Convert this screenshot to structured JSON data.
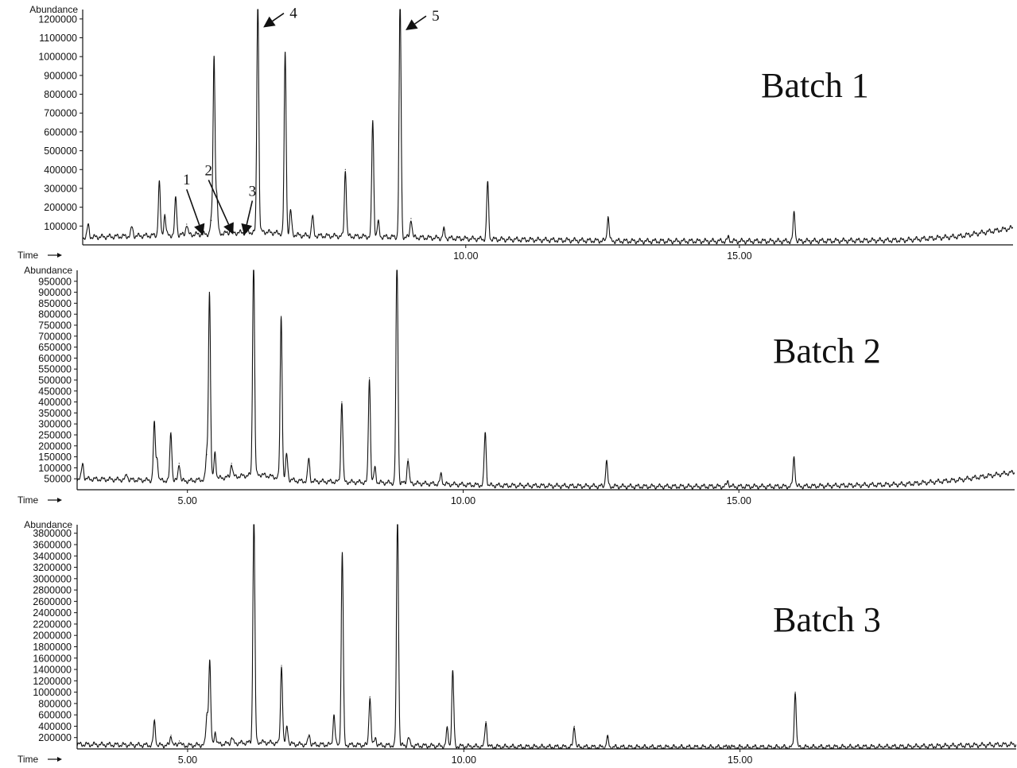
{
  "chart_data": [
    {
      "type": "line",
      "label": "Batch 1",
      "ylabel": "Abundance",
      "xlabel": "Time",
      "xlim": [
        3.0,
        20.0
      ],
      "ylim": [
        0,
        1250000
      ],
      "y_ticks": [
        100000,
        200000,
        300000,
        400000,
        500000,
        600000,
        700000,
        800000,
        900000,
        1000000,
        1100000,
        1200000
      ],
      "x_ticks": [
        10.0,
        15.0
      ],
      "x_tick_labels": [
        "10.00",
        "15.00"
      ],
      "baseline": [
        [
          3.0,
          40000
        ],
        [
          5.0,
          55000
        ],
        [
          6.3,
          70000
        ],
        [
          7.0,
          50000
        ],
        [
          9.0,
          40000
        ],
        [
          10.5,
          30000
        ],
        [
          13.0,
          20000
        ],
        [
          16.0,
          20000
        ],
        [
          18.0,
          25000
        ],
        [
          19.0,
          45000
        ],
        [
          20.0,
          90000
        ]
      ],
      "peaks": [
        {
          "x": 3.1,
          "y": 105000
        },
        {
          "x": 3.9,
          "y": 95000
        },
        {
          "x": 4.4,
          "y": 330000
        },
        {
          "x": 4.5,
          "y": 160000
        },
        {
          "x": 4.7,
          "y": 250000
        },
        {
          "x": 4.9,
          "y": 110000
        },
        {
          "x": 5.35,
          "y": 130000
        },
        {
          "x": 5.4,
          "y": 1000000
        },
        {
          "x": 5.45,
          "y": 250000
        },
        {
          "x": 5.7,
          "y": 80000
        },
        {
          "x": 6.2,
          "y": 1300000
        },
        {
          "x": 6.7,
          "y": 1020000
        },
        {
          "x": 6.8,
          "y": 180000
        },
        {
          "x": 7.2,
          "y": 150000
        },
        {
          "x": 7.8,
          "y": 400000
        },
        {
          "x": 8.3,
          "y": 660000
        },
        {
          "x": 8.4,
          "y": 120000
        },
        {
          "x": 8.8,
          "y": 1300000
        },
        {
          "x": 9.0,
          "y": 140000
        },
        {
          "x": 9.6,
          "y": 80000
        },
        {
          "x": 10.4,
          "y": 330000
        },
        {
          "x": 12.6,
          "y": 150000
        },
        {
          "x": 14.8,
          "y": 40000
        },
        {
          "x": 16.0,
          "y": 170000
        }
      ],
      "annotations": [
        {
          "text": "1",
          "x": 4.9,
          "y": 320000,
          "target_x": 5.2,
          "target_y": 50000
        },
        {
          "text": "2",
          "x": 5.3,
          "y": 370000,
          "target_x": 5.75,
          "target_y": 55000
        },
        {
          "text": "3",
          "x": 6.1,
          "y": 260000,
          "target_x": 5.95,
          "target_y": 50000
        },
        {
          "text": "4",
          "x": 6.85,
          "y": 1205000,
          "target_x": 6.3,
          "target_y": 1155000
        },
        {
          "text": "5",
          "x": 9.45,
          "y": 1190000,
          "target_x": 8.9,
          "target_y": 1140000
        }
      ]
    },
    {
      "type": "line",
      "label": "Batch 2",
      "ylabel": "Abundance",
      "xlabel": "Time",
      "xlim": [
        3.0,
        20.0
      ],
      "ylim": [
        0,
        1000000
      ],
      "y_ticks": [
        50000,
        100000,
        150000,
        200000,
        250000,
        300000,
        350000,
        400000,
        450000,
        500000,
        550000,
        600000,
        650000,
        700000,
        750000,
        800000,
        850000,
        900000,
        950000
      ],
      "x_ticks": [
        5.0,
        10.0,
        15.0
      ],
      "x_tick_labels": [
        "5.00",
        "10.00",
        "15.00"
      ],
      "baseline": [
        [
          3.0,
          50000
        ],
        [
          5.0,
          40000
        ],
        [
          6.3,
          70000
        ],
        [
          7.0,
          40000
        ],
        [
          9.0,
          30000
        ],
        [
          10.5,
          20000
        ],
        [
          13.0,
          15000
        ],
        [
          16.0,
          15000
        ],
        [
          18.0,
          25000
        ],
        [
          19.0,
          45000
        ],
        [
          20.0,
          80000
        ]
      ],
      "peaks": [
        {
          "x": 3.1,
          "y": 120000
        },
        {
          "x": 3.9,
          "y": 70000
        },
        {
          "x": 4.4,
          "y": 300000
        },
        {
          "x": 4.45,
          "y": 140000
        },
        {
          "x": 4.7,
          "y": 260000
        },
        {
          "x": 4.85,
          "y": 120000
        },
        {
          "x": 5.35,
          "y": 160000
        },
        {
          "x": 5.4,
          "y": 900000
        },
        {
          "x": 5.5,
          "y": 170000
        },
        {
          "x": 5.8,
          "y": 120000
        },
        {
          "x": 6.2,
          "y": 1050000
        },
        {
          "x": 6.7,
          "y": 790000
        },
        {
          "x": 6.8,
          "y": 160000
        },
        {
          "x": 7.2,
          "y": 140000
        },
        {
          "x": 7.8,
          "y": 400000
        },
        {
          "x": 8.3,
          "y": 510000
        },
        {
          "x": 8.4,
          "y": 100000
        },
        {
          "x": 8.8,
          "y": 1050000
        },
        {
          "x": 9.0,
          "y": 140000
        },
        {
          "x": 9.6,
          "y": 70000
        },
        {
          "x": 10.4,
          "y": 260000
        },
        {
          "x": 12.6,
          "y": 130000
        },
        {
          "x": 14.8,
          "y": 40000
        },
        {
          "x": 16.0,
          "y": 150000
        }
      ]
    },
    {
      "type": "line",
      "label": "Batch 3",
      "ylabel": "Abundance",
      "xlabel": "Time",
      "xlim": [
        3.0,
        20.0
      ],
      "ylim": [
        0,
        3950000
      ],
      "y_ticks": [
        200000,
        400000,
        600000,
        800000,
        1000000,
        1200000,
        1400000,
        1600000,
        1800000,
        2000000,
        2200000,
        2400000,
        2600000,
        2800000,
        3000000,
        3200000,
        3400000,
        3600000,
        3800000
      ],
      "x_ticks": [
        5.0,
        10.0,
        15.0
      ],
      "x_tick_labels": [
        "5.00",
        "10.00",
        "15.00"
      ],
      "baseline": [
        [
          3.0,
          80000
        ],
        [
          5.0,
          60000
        ],
        [
          6.3,
          120000
        ],
        [
          7.0,
          80000
        ],
        [
          9.0,
          60000
        ],
        [
          10.5,
          40000
        ],
        [
          13.0,
          30000
        ],
        [
          16.0,
          30000
        ],
        [
          18.0,
          40000
        ],
        [
          19.0,
          60000
        ],
        [
          20.0,
          80000
        ]
      ],
      "peaks": [
        {
          "x": 4.4,
          "y": 480000
        },
        {
          "x": 4.7,
          "y": 240000
        },
        {
          "x": 4.85,
          "y": 140000
        },
        {
          "x": 5.35,
          "y": 600000
        },
        {
          "x": 5.4,
          "y": 1550000
        },
        {
          "x": 5.5,
          "y": 300000
        },
        {
          "x": 5.8,
          "y": 200000
        },
        {
          "x": 6.2,
          "y": 4100000
        },
        {
          "x": 6.7,
          "y": 1470000
        },
        {
          "x": 6.8,
          "y": 400000
        },
        {
          "x": 7.2,
          "y": 250000
        },
        {
          "x": 7.65,
          "y": 600000
        },
        {
          "x": 7.8,
          "y": 3460000
        },
        {
          "x": 8.3,
          "y": 920000
        },
        {
          "x": 8.4,
          "y": 200000
        },
        {
          "x": 8.8,
          "y": 4100000
        },
        {
          "x": 9.0,
          "y": 200000
        },
        {
          "x": 9.7,
          "y": 350000
        },
        {
          "x": 9.8,
          "y": 1360000
        },
        {
          "x": 10.4,
          "y": 480000
        },
        {
          "x": 12.0,
          "y": 400000
        },
        {
          "x": 12.6,
          "y": 200000
        },
        {
          "x": 14.8,
          "y": 60000
        },
        {
          "x": 16.0,
          "y": 1000000
        }
      ]
    }
  ]
}
